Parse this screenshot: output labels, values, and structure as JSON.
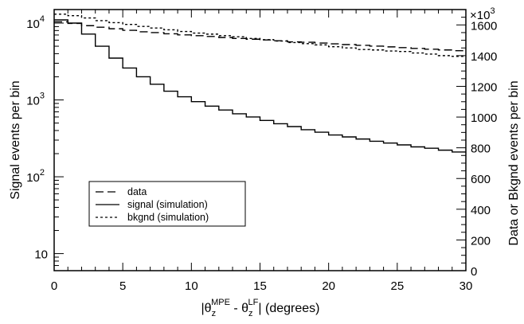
{
  "chart_data": {
    "type": "line",
    "style": "step-histogram",
    "x_axis": {
      "range": [
        0,
        30
      ],
      "ticks": [
        0,
        5,
        10,
        15,
        20,
        25,
        30
      ],
      "tick_labels": [
        "0",
        "5",
        "10",
        "15",
        "20",
        "25",
        "30"
      ],
      "label_parts": [
        "|θ",
        "z",
        "MPE",
        " - θ",
        "z",
        "LF",
        "|  (degrees)"
      ]
    },
    "y_left": {
      "label": "Signal events per bin",
      "scale": "log",
      "range": [
        6,
        15000
      ],
      "ticks": [
        10,
        100,
        1000,
        10000
      ],
      "tick_labels": [
        "10",
        "10",
        "10",
        "10"
      ],
      "tick_exponents": [
        "",
        "2",
        "3",
        "4"
      ]
    },
    "y_right": {
      "label": "Data or Bkgnd events per bin",
      "scale": "linear",
      "range": [
        0,
        1700
      ],
      "ticks": [
        0,
        200,
        400,
        600,
        800,
        1000,
        1200,
        1400,
        1600
      ],
      "tick_labels": [
        "0",
        "200",
        "400",
        "600",
        "800",
        "1000",
        "1200",
        "1400",
        "1600"
      ],
      "multiplier_label": "×10",
      "multiplier_exponent": "3"
    },
    "bin_width": 1,
    "series": [
      {
        "name": "data",
        "axis": "right",
        "values": [
          1620,
          1610,
          1595,
          1585,
          1575,
          1565,
          1555,
          1550,
          1542,
          1535,
          1530,
          1525,
          1518,
          1512,
          1507,
          1502,
          1497,
          1490,
          1487,
          1482,
          1477,
          1472,
          1467,
          1462,
          1457,
          1452,
          1447,
          1442,
          1437,
          1432
        ]
      },
      {
        "name": "signal (simulation)",
        "axis": "left",
        "values": [
          11000,
          10000,
          7200,
          5000,
          3500,
          2600,
          2000,
          1600,
          1300,
          1100,
          950,
          830,
          740,
          660,
          600,
          540,
          490,
          450,
          410,
          380,
          350,
          330,
          310,
          290,
          275,
          260,
          245,
          235,
          222,
          210
        ]
      },
      {
        "name": "bkgnd (simulation)",
        "axis": "right",
        "values": [
          1670,
          1660,
          1645,
          1628,
          1615,
          1603,
          1590,
          1580,
          1568,
          1557,
          1547,
          1540,
          1530,
          1523,
          1512,
          1504,
          1495,
          1485,
          1478,
          1470,
          1458,
          1450,
          1440,
          1437,
          1430,
          1427,
          1417,
          1410,
          1400,
          1395
        ]
      }
    ],
    "legend": {
      "placement": "lower-left",
      "entries": [
        "data",
        "signal (simulation)",
        "bkgnd (simulation)"
      ]
    }
  }
}
